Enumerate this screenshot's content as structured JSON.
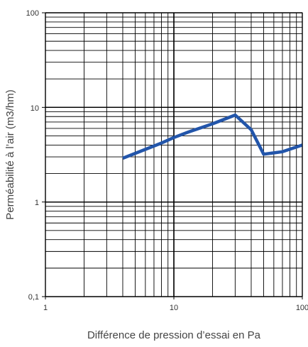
{
  "chart_data": {
    "type": "line",
    "xscale": "log",
    "yscale": "log",
    "xlim": [
      1,
      100
    ],
    "ylim": [
      0.1,
      100
    ],
    "grid": true,
    "xlabel": "Différence de pression d’essai en Pa",
    "ylabel": "Perméabilité à l’air (m3/hm)",
    "x_ticks": [
      "1",
      "10",
      "100"
    ],
    "y_ticks": [
      "0,1",
      "1",
      "10",
      "100"
    ],
    "series": [
      {
        "color": "#2255aa",
        "x": [
          4,
          6,
          8,
          10,
          13,
          20,
          30,
          40,
          50,
          70,
          100
        ],
        "y": [
          2.9,
          3.6,
          4.2,
          4.8,
          5.5,
          6.7,
          8.3,
          5.8,
          3.2,
          3.4,
          4.0
        ]
      }
    ]
  }
}
